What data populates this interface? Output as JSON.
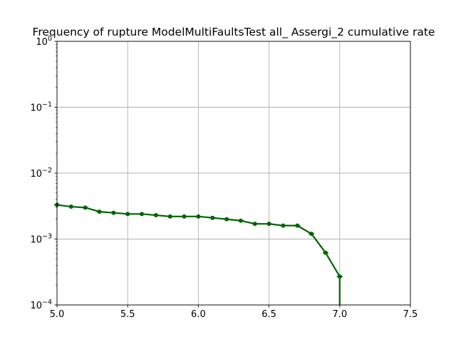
{
  "chart_data": {
    "type": "line",
    "title": "Frequency of rupture ModelMultiFaultsTest all_ Assergi_2 cumulative rate",
    "xlabel": "",
    "ylabel": "",
    "xlim": [
      5.0,
      7.5
    ],
    "ylim": [
      0.0001,
      1
    ],
    "yscale": "log",
    "grid": true,
    "x_ticks": [
      {
        "value": 5.0,
        "label": "5.0"
      },
      {
        "value": 5.5,
        "label": "5.5"
      },
      {
        "value": 6.0,
        "label": "6.0"
      },
      {
        "value": 6.5,
        "label": "6.5"
      },
      {
        "value": 7.0,
        "label": "7.0"
      },
      {
        "value": 7.5,
        "label": "7.5"
      }
    ],
    "y_ticks": [
      {
        "value": 0.0001,
        "base": "10",
        "exp": "−4"
      },
      {
        "value": 0.001,
        "base": "10",
        "exp": "−3"
      },
      {
        "value": 0.01,
        "base": "10",
        "exp": "−2"
      },
      {
        "value": 0.1,
        "base": "10",
        "exp": "−1"
      },
      {
        "value": 1,
        "base": "10",
        "exp": "0"
      }
    ],
    "series": [
      {
        "color": "#006400",
        "x": [
          5.0,
          5.1,
          5.2,
          5.3,
          5.4,
          5.5,
          5.6,
          5.7,
          5.8,
          5.9,
          6.0,
          6.1,
          6.2,
          6.3,
          6.4,
          6.5,
          6.6,
          6.7,
          6.8,
          6.9,
          7.0
        ],
        "y": [
          0.0033,
          0.0031,
          0.003,
          0.0026,
          0.0025,
          0.0024,
          0.0024,
          0.0023,
          0.0022,
          0.0022,
          0.0022,
          0.0021,
          0.002,
          0.0019,
          0.0017,
          0.0017,
          0.0016,
          0.0016,
          0.0012,
          0.00062,
          0.00027
        ],
        "error_bars": [
          {
            "x": 7.0,
            "low": 0.0001,
            "high": 0.00027
          }
        ]
      }
    ]
  }
}
